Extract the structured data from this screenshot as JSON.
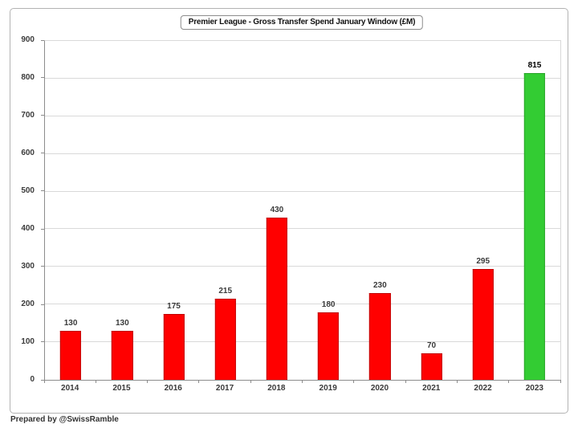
{
  "chart_data": {
    "type": "bar",
    "title": "Premier League - Gross Transfer Spend January Window (£M)",
    "categories": [
      "2014",
      "2015",
      "2016",
      "2017",
      "2018",
      "2019",
      "2020",
      "2021",
      "2022",
      "2023"
    ],
    "values": [
      130,
      130,
      175,
      215,
      430,
      180,
      230,
      70,
      295,
      815
    ],
    "highlight_index": 9,
    "ylim": [
      0,
      900
    ],
    "ytick_interval": 100,
    "grid": true,
    "legend": "none",
    "data_labels": true,
    "colors": {
      "bar_default": "#ff0000",
      "bar_default_border": "#c00000",
      "bar_highlight": "#33cc33",
      "bar_highlight_border": "#28a428",
      "gridline": "#d9d9d9",
      "axis_line": "#8c8c8c"
    }
  },
  "footer": {
    "credit": "Prepared by @SwissRamble"
  }
}
